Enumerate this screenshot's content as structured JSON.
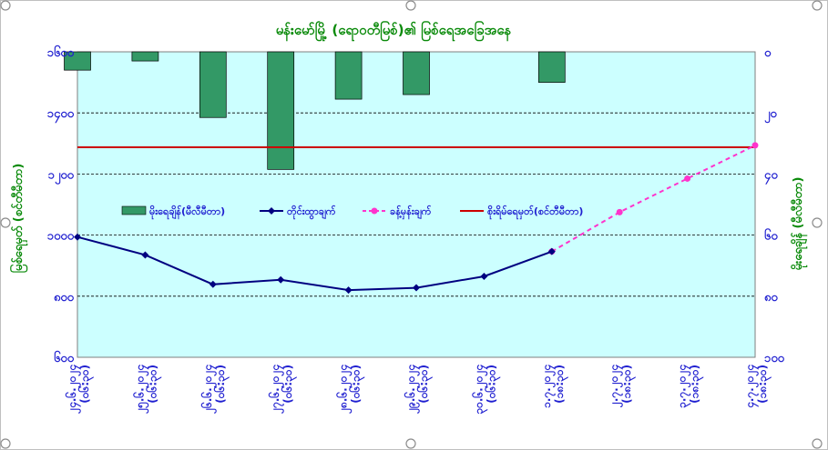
{
  "chart_data": {
    "type": "bar+line",
    "title": "မန်းမော်မြို့ (ရောဝတီမြစ်)၏ မြစ်ရေအခြေအနေ",
    "ylabel_left": "မြစ်ရေမှတ် (စင်တီမီတာ)",
    "ylabel_right": "မိုးရေချိန် (မီလီမီတာ)",
    "xlabel": "",
    "categories": [
      "၂၄.၆.၂၀၂၄ (၀၆:၃၀)",
      "၂၅.၆.၂၀၂၄ (၀၆:၃၀)",
      "၂၆.၆.၂၀၂၄ (၀၆:၃၀)",
      "၂၇.၆.၂၀၂၄ (၀၆:၃၀)",
      "၂၈.၆.၂၀၂၄ (၀၆:၃၀)",
      "၂၉.၆.၂၀၂၄ (၀၆:၃၀)",
      "၃၀.၆.၂၀၂၄ (၀၆:၃၀)",
      "၁.၇.၂၀၂၄ (၁၈:၃၀)",
      "၂.၇.၂၀၂၄ (၁၈:၃၀)",
      "၃.၇.၂၀၂၄ (၁၈:၃၀)",
      "၄.၇.၂၀၂၄ (၁၈:၃၀)"
    ],
    "left_axis": {
      "min": 600,
      "max": 1400,
      "step": 200,
      "ticks": [
        "၆၀၀",
        "၈၀၀",
        "၁၀၀၀",
        "၁၂၀၀",
        "၁၄၀၀",
        "၁၆၀၀"
      ]
    },
    "right_axis": {
      "min": 0,
      "max": 100,
      "step": 20,
      "inverted": true,
      "ticks": [
        "၀",
        "၂၀",
        "၄၀",
        "၆၀",
        "၈၀",
        "၁၀၀"
      ]
    },
    "series": [
      {
        "name": "မိုးရေချိန်(မီလီမီတာ)",
        "type": "bar",
        "axis": "right",
        "color": "#339966",
        "values": [
          6,
          3,
          21.5,
          38.5,
          15.5,
          14,
          0,
          10,
          null,
          null,
          null
        ]
      },
      {
        "name": "တိုင်းထွာချက်",
        "type": "line",
        "axis": "left",
        "color": "#000080",
        "values": [
          915,
          868,
          791,
          803,
          776,
          782,
          812,
          877,
          null,
          null,
          null
        ]
      },
      {
        "name": "ခန့်မှန်းချက်",
        "type": "line-dashed",
        "axis": "left",
        "color": "#ff33cc",
        "values": [
          null,
          null,
          null,
          null,
          null,
          null,
          null,
          877,
          980,
          1068,
          1155
        ]
      },
      {
        "name": "စိုးရိမ်ရေမှတ်(စင်တီမီတာ)",
        "type": "hline",
        "axis": "left",
        "color": "#cc0000",
        "value": 1150
      }
    ],
    "plot_background": "#ccffff",
    "grid": true,
    "legend_position": "inside-middle"
  }
}
